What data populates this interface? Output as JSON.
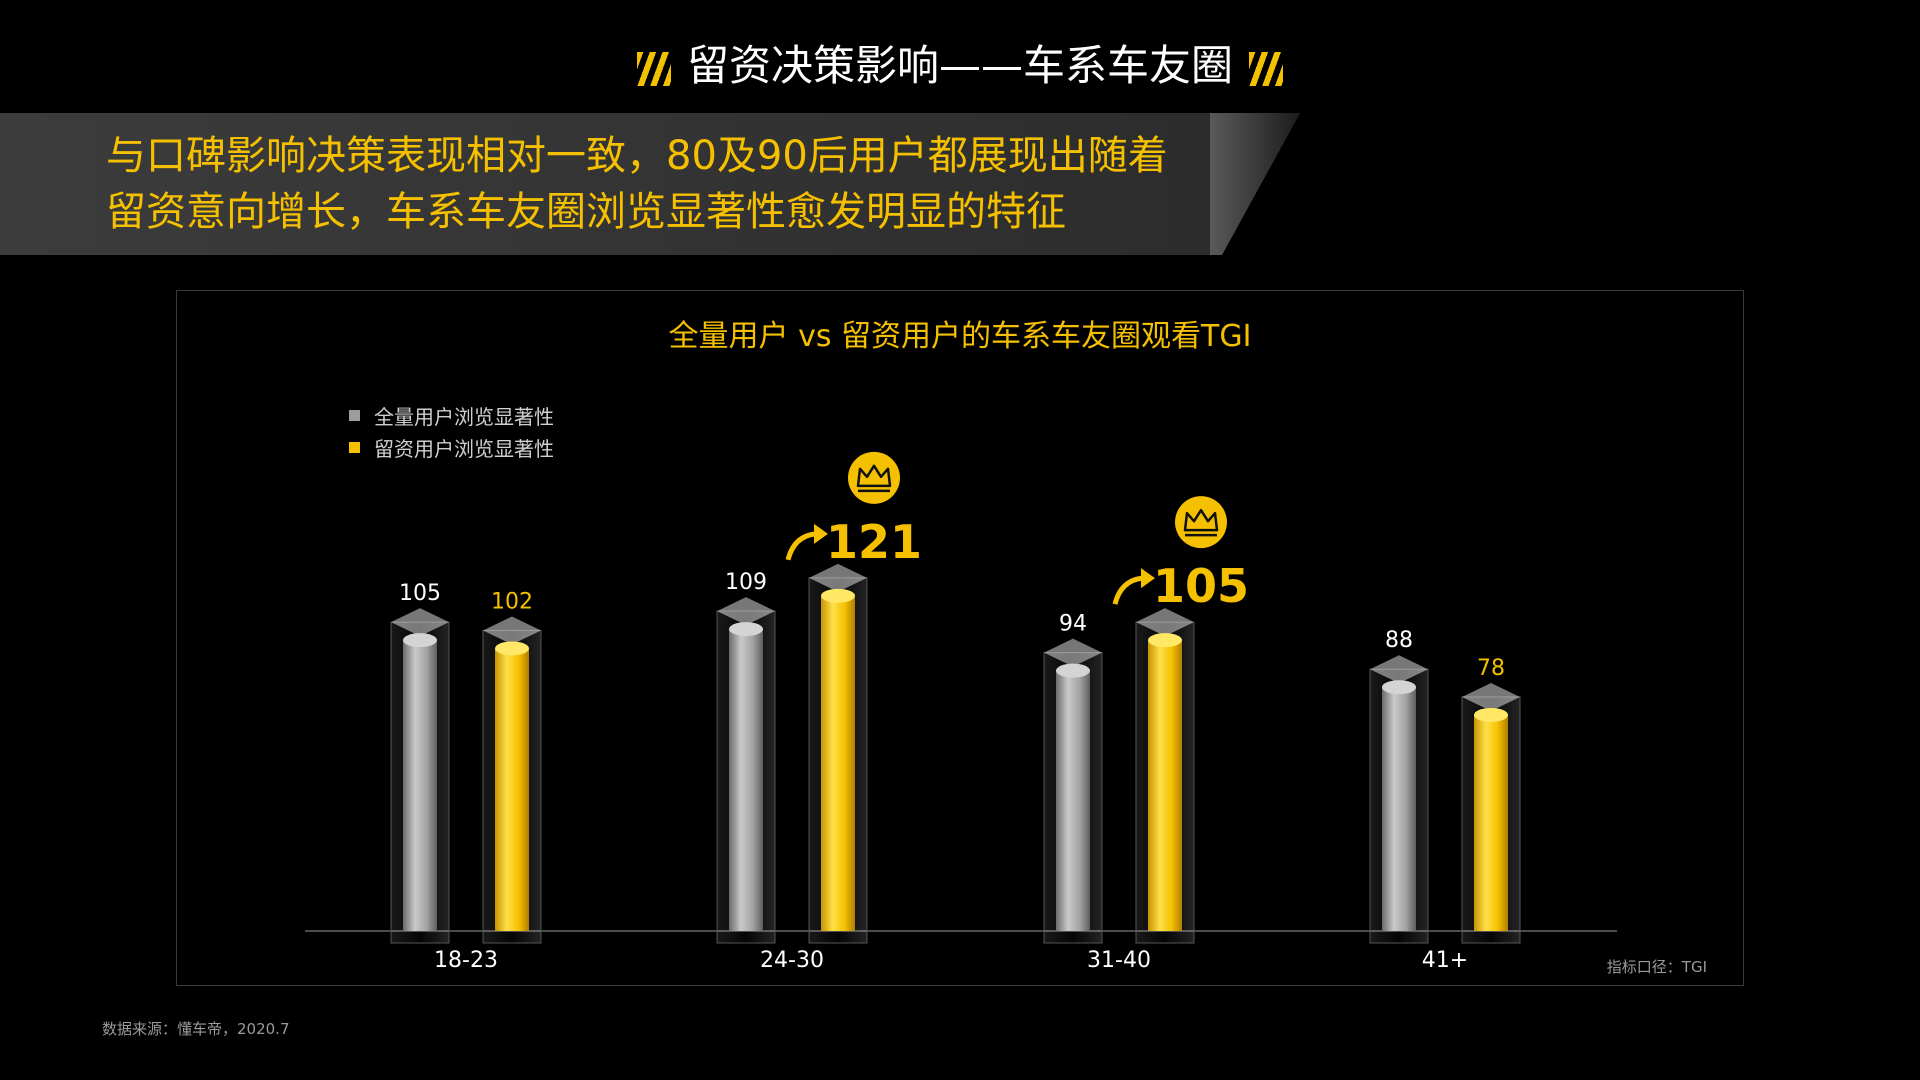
{
  "page": {
    "title": "留资决策影响——车系车友圈",
    "headline_line1": "与口碑影响决策表现相对一致，80及90后用户都展现出随着",
    "headline_line2": "留资意向增长，车系车友圈浏览显著性愈发明显的特征",
    "source": "数据来源：懂车帝，2020.7",
    "unit_note": "指标口径：TGI"
  },
  "colors": {
    "accent": "#f5c000",
    "gray_bar": "#9d9d9d",
    "background": "#000000"
  },
  "chart_data": {
    "type": "bar",
    "title": "全量用户 vs 留资用户的车系车友圈观看TGI",
    "categories": [
      "18-23",
      "24-30",
      "31-40",
      "41+"
    ],
    "series": [
      {
        "name": "全量用户浏览显著性",
        "values": [
          105,
          109,
          94,
          88
        ],
        "color": "#9d9d9d"
      },
      {
        "name": "留资用户浏览显著性",
        "values": [
          102,
          121,
          105,
          78
        ],
        "color": "#f5c000"
      }
    ],
    "highlights": [
      {
        "category": "24-30",
        "series": "留资用户浏览显著性",
        "icon": "crown-icon",
        "arrow": "up-arrow-icon"
      },
      {
        "category": "31-40",
        "series": "留资用户浏览显著性",
        "icon": "crown-icon",
        "arrow": "up-arrow-icon"
      }
    ],
    "legend": "top-left",
    "grid": false
  }
}
